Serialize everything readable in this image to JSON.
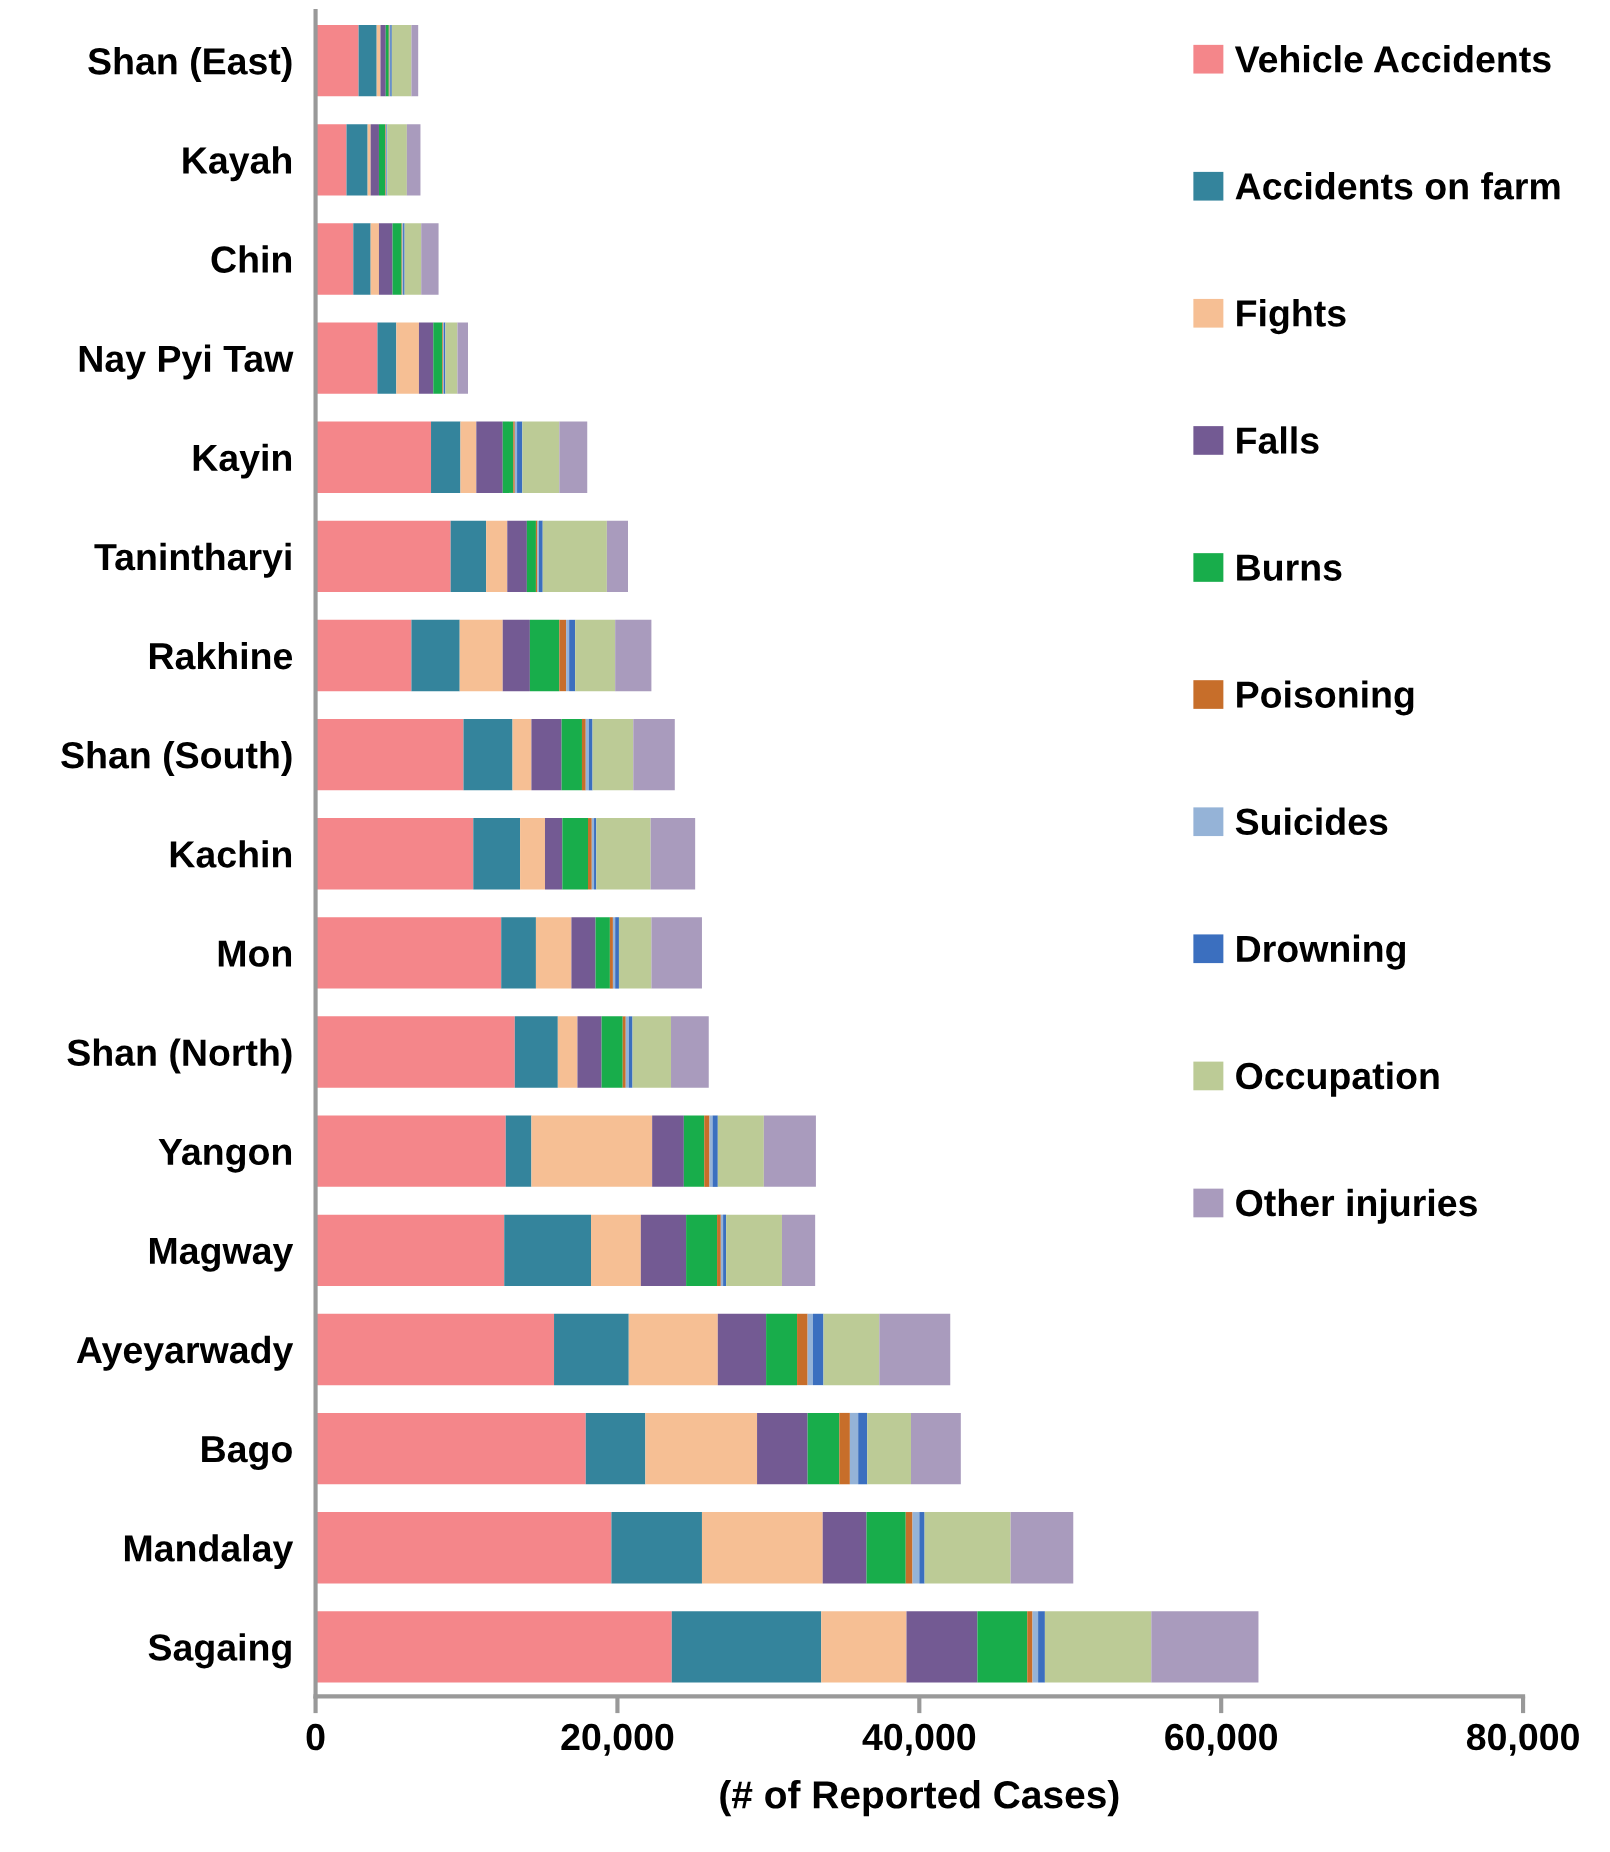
{
  "chart_data": {
    "type": "bar",
    "orientation": "horizontal",
    "stacked": true,
    "xlabel": "(# of Reported Cases)",
    "categories": [
      "Shan (East)",
      "Kayah",
      "Chin",
      "Nay Pyi Taw",
      "Kayin",
      "Tanintharyi",
      "Rakhine",
      "Shan (South)",
      "Kachin",
      "Mon",
      "Shan (North)",
      "Yangon",
      "Magway",
      "Ayeyarwady",
      "Bago",
      "Mandalay",
      "Sagaing"
    ],
    "xlim": [
      0,
      80000
    ],
    "xticks": [
      0,
      {
        "value": 20000,
        "label": "20,000"
      },
      {
        "value": 40000,
        "label": "40,000"
      },
      {
        "value": 60000,
        "label": "60,000"
      },
      {
        "value": 80000,
        "label": "80,000"
      }
    ],
    "grid": false,
    "legend": "top right",
    "series": [
      {
        "name": "Vehicle Accidents",
        "color": "#f4868a",
        "values": [
          2850,
          2050,
          2500,
          4100,
          7650,
          8950,
          6350,
          9800,
          10450,
          12300,
          13200,
          12600,
          12500,
          15800,
          17900,
          19600,
          23600
        ]
      },
      {
        "name": "Accidents on farm",
        "color": "#34849c",
        "values": [
          1200,
          1400,
          1150,
          1250,
          1950,
          2350,
          3200,
          3250,
          3100,
          2300,
          2850,
          1700,
          5750,
          4950,
          3950,
          6000,
          9900
        ]
      },
      {
        "name": "Fights",
        "color": "#f6bf94",
        "values": [
          250,
          200,
          550,
          1500,
          1050,
          1400,
          2850,
          1250,
          1650,
          2350,
          1300,
          8000,
          3300,
          5900,
          7400,
          8000,
          5650
        ]
      },
      {
        "name": "Falls",
        "color": "#735a93",
        "values": [
          350,
          550,
          900,
          950,
          1750,
          1300,
          1800,
          2000,
          1150,
          1600,
          1600,
          2100,
          3000,
          3200,
          3350,
          2900,
          4700
        ]
      },
      {
        "name": "Burns",
        "color": "#18ad4b",
        "values": [
          200,
          400,
          600,
          600,
          700,
          600,
          1950,
          1350,
          1700,
          950,
          1400,
          1350,
          2050,
          2050,
          2100,
          2600,
          3300
        ]
      },
      {
        "name": "Poisoning",
        "color": "#c76e2a",
        "values": [
          50,
          50,
          50,
          50,
          100,
          100,
          450,
          250,
          250,
          200,
          200,
          350,
          250,
          700,
          700,
          450,
          350
        ]
      },
      {
        "name": "Suicides",
        "color": "#95b3d7",
        "values": [
          50,
          50,
          50,
          50,
          150,
          100,
          200,
          200,
          150,
          150,
          200,
          200,
          150,
          350,
          550,
          450,
          370
        ]
      },
      {
        "name": "Drowning",
        "color": "#3b6fbf",
        "values": [
          100,
          50,
          100,
          100,
          350,
          250,
          400,
          250,
          150,
          250,
          250,
          350,
          200,
          700,
          600,
          350,
          450
        ]
      },
      {
        "name": "Occupation",
        "color": "#bccb96",
        "values": [
          1300,
          1300,
          1100,
          800,
          2450,
          4250,
          2650,
          2700,
          3600,
          2150,
          2550,
          3050,
          3700,
          3700,
          2900,
          5700,
          7050
        ]
      },
      {
        "name": "Other injuries",
        "color": "#a99bbd",
        "values": [
          450,
          900,
          1150,
          700,
          1850,
          1400,
          2400,
          2750,
          2950,
          3350,
          2500,
          3450,
          2200,
          4700,
          3300,
          4150,
          7100
        ]
      }
    ]
  }
}
